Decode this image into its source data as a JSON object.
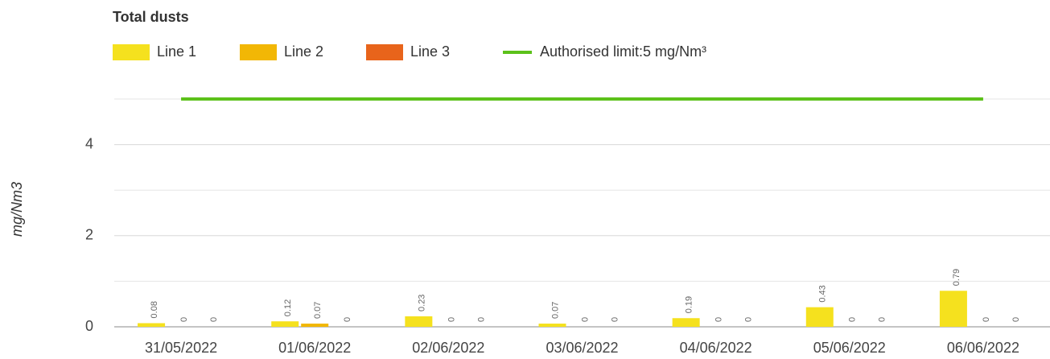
{
  "chart_data": {
    "type": "bar",
    "title": "Total dusts",
    "ylabel": "mg/Nm3",
    "categories": [
      "31/05/2022",
      "01/06/2022",
      "02/06/2022",
      "03/06/2022",
      "04/06/2022",
      "05/06/2022",
      "06/06/2022"
    ],
    "series": [
      {
        "name": "Line 1",
        "color": "#f5e11e",
        "values": [
          0.08,
          0.12,
          0.23,
          0.07,
          0.19,
          0.43,
          0.79
        ]
      },
      {
        "name": "Line 2",
        "color": "#f2b705",
        "values": [
          0,
          0.07,
          0,
          0,
          0,
          0,
          0
        ]
      },
      {
        "name": "Line 3",
        "color": "#e8641b",
        "values": [
          0,
          0,
          0,
          0,
          0,
          0,
          0
        ]
      },
      {
        "name": "Authorised limit:5 mg/Nm³",
        "color": "#5cc11a",
        "type": "line",
        "values": [
          5,
          5,
          5,
          5,
          5,
          5,
          5
        ]
      }
    ],
    "ylim": [
      0,
      5
    ],
    "yticks": [
      0,
      2,
      4
    ],
    "grid": true,
    "legend": "top-left"
  }
}
